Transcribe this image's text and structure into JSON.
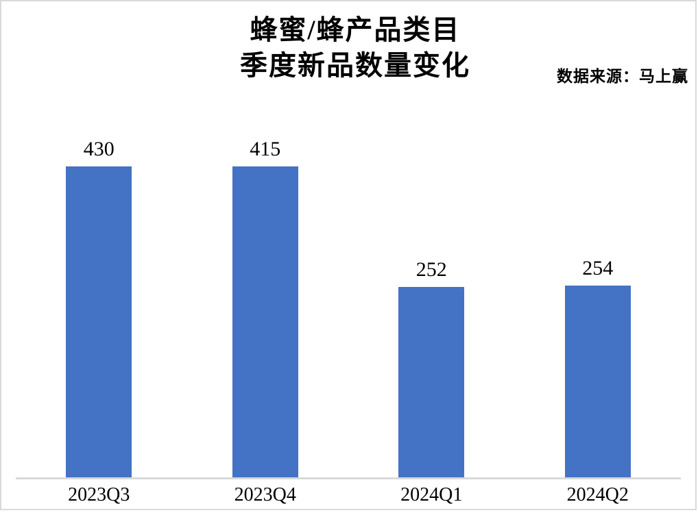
{
  "title": {
    "line1": "蜂蜜/蜂产品类目",
    "line2": "季度新品数量变化"
  },
  "source_note": "数据来源：马上赢",
  "chart_data": {
    "type": "bar",
    "categories": [
      "2023Q3",
      "2023Q4",
      "2024Q1",
      "2024Q2"
    ],
    "values": [
      430,
      415,
      252,
      254
    ],
    "title": "蜂蜜/蜂产品类目 季度新品数量变化",
    "xlabel": "",
    "ylabel": "",
    "ylim": [
      0,
      450
    ],
    "grid": false,
    "legend": false,
    "value_labels_shown": true,
    "bar_color": "#4472C4",
    "axis_line_color": "#D9D9D9",
    "text_color": "#000000",
    "background_color": "#FFFFFF"
  }
}
